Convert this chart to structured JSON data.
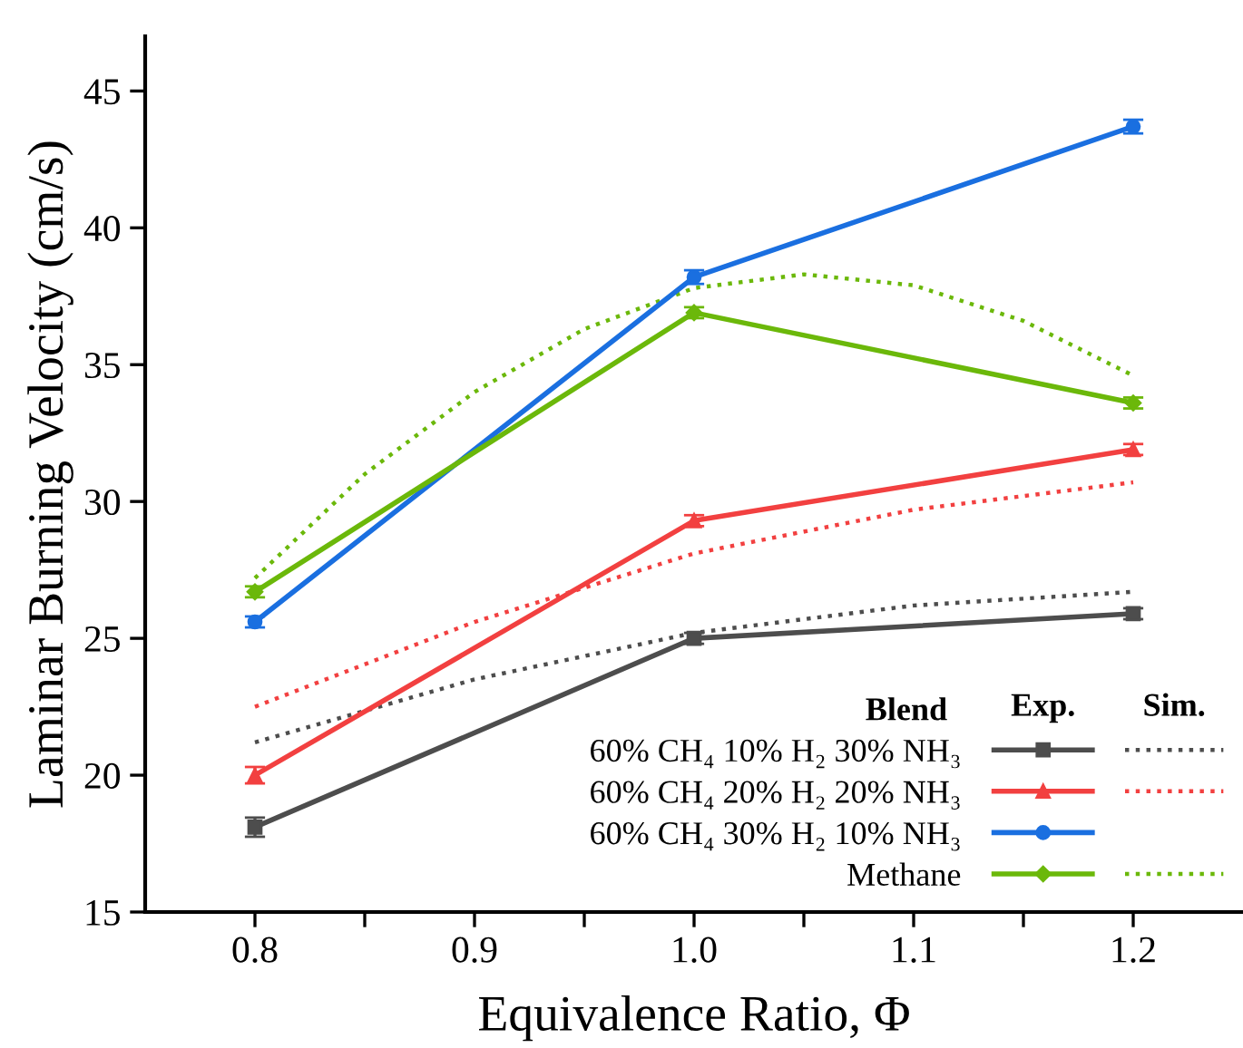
{
  "chart_data": {
    "type": "line",
    "xlabel": "Equivalence Ratio, Φ",
    "ylabel": "Laminar Burning Velocity (cm/s)",
    "legend_title": "Blend",
    "annotations": [
      "Exp.",
      "Sim."
    ],
    "xlim": [
      0.75,
      1.25
    ],
    "xticks": [
      0.8,
      {
        "value": 0.85,
        "label": null
      },
      0.9,
      {
        "value": 0.95,
        "label": null
      },
      {
        "value": 1.0,
        "label": "1.0"
      },
      {
        "value": 1.05,
        "label": null
      },
      1.1,
      {
        "value": 1.15,
        "label": null
      },
      1.2
    ],
    "ylim": [
      15,
      47
    ],
    "yticks": [
      15,
      20,
      25,
      30,
      35,
      40,
      45
    ],
    "grid": false,
    "legend": "bottom right",
    "series": [
      {
        "name": "60% CH₄ 10% H₂ 30% NH₃",
        "color": "#4d4d4d",
        "marker": "square",
        "line_style": "solid",
        "x": [
          0.8,
          1.0,
          1.2
        ],
        "values": [
          18.1,
          25.0,
          25.9
        ],
        "errors": [
          0.35,
          0.2,
          0.2
        ]
      },
      {
        "name": "60% CH₄ 20% H₂ 20% NH₃",
        "color": "#f24040",
        "marker": "triangle",
        "line_style": "solid",
        "x": [
          0.8,
          1.0,
          1.2
        ],
        "values": [
          20.0,
          29.3,
          31.9
        ],
        "errors": [
          0.3,
          0.2,
          0.2
        ]
      },
      {
        "name": "60% CH₄ 30% H₂ 10% NH₃",
        "color": "#1a6fe0",
        "marker": "circle",
        "line_style": "solid",
        "x": [
          0.8,
          1.0,
          1.2
        ],
        "values": [
          25.6,
          38.2,
          43.7
        ],
        "errors": [
          0.2,
          0.25,
          0.25
        ]
      },
      {
        "name": "Methane",
        "color": "#6bb80a",
        "marker": "diamond",
        "line_style": "solid",
        "x": [
          0.8,
          1.0,
          1.2
        ],
        "values": [
          26.7,
          36.9,
          33.6
        ],
        "errors": [
          0.2,
          0.2,
          0.2
        ]
      },
      {
        "color": "#4d4d4d",
        "marker": "none",
        "line_style": "dotted",
        "x": [
          0.8,
          0.9,
          1.0,
          1.1,
          1.2
        ],
        "values": [
          21.2,
          23.5,
          25.2,
          26.2,
          26.7
        ]
      },
      {
        "color": "#f24040",
        "marker": "none",
        "line_style": "dotted",
        "x": [
          0.8,
          0.9,
          1.0,
          1.1,
          1.2
        ],
        "values": [
          22.5,
          25.6,
          28.1,
          29.7,
          30.7
        ]
      },
      {
        "color": "#6bb80a",
        "marker": "none",
        "line_style": "dotted",
        "x": [
          0.8,
          0.85,
          0.9,
          0.95,
          1.0,
          1.05,
          1.1,
          1.15,
          1.2
        ],
        "values": [
          27.2,
          31.0,
          34.0,
          36.3,
          37.8,
          38.3,
          37.9,
          36.6,
          34.6
        ]
      }
    ]
  }
}
